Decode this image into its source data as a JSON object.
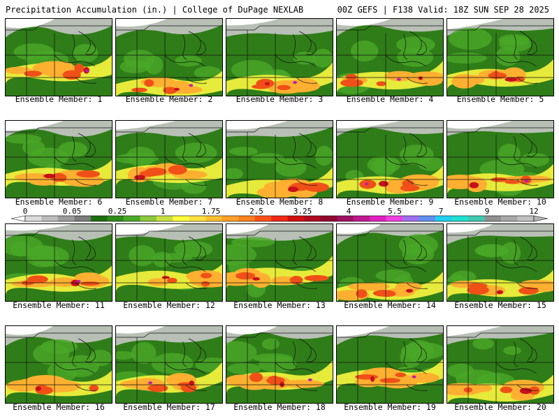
{
  "header": {
    "left": "Precipitation Accumulation (in.) | College of DuPage NEXLAB",
    "right": "00Z GEFS | F138 Valid: 18Z SUN SEP 28 2025"
  },
  "panels": [
    {
      "label": "Ensemble Member: 1"
    },
    {
      "label": "Ensemble Member: 2"
    },
    {
      "label": "Ensemble Member: 3"
    },
    {
      "label": "Ensemble Member: 4"
    },
    {
      "label": "Ensemble Member: 5"
    },
    {
      "label": "Ensemble Member: 6"
    },
    {
      "label": "Ensemble Member: 7"
    },
    {
      "label": "Ensemble Member: 8"
    },
    {
      "label": "Ensemble Member: 9"
    },
    {
      "label": "Ensemble Member: 10"
    },
    {
      "label": "Ensemble Member: 11"
    },
    {
      "label": "Ensemble Member: 12"
    },
    {
      "label": "Ensemble Member: 13"
    },
    {
      "label": "Ensemble Member: 14"
    },
    {
      "label": "Ensemble Member: 15"
    },
    {
      "label": "Ensemble Member: 16"
    },
    {
      "label": "Ensemble Member: 17"
    },
    {
      "label": "Ensemble Member: 18"
    },
    {
      "label": "Ensemble Member: 19"
    },
    {
      "label": "Ensemble Member: 20"
    }
  ],
  "colorbar": {
    "ticks": [
      "0",
      "0.05",
      "0.25",
      "1",
      "1.75",
      "2.5",
      "3.25",
      "4",
      "5.5",
      "7",
      "9",
      "12"
    ],
    "colors": [
      "#dcdcdc",
      "#bcbcbc",
      "#9c9c9c",
      "#7c7c7c",
      "#1e6e10",
      "#2e8c1a",
      "#4aa828",
      "#8cc83c",
      "#c8e040",
      "#ffff3c",
      "#ffe040",
      "#ffc030",
      "#ffa028",
      "#ff8020",
      "#ff5018",
      "#ee2814",
      "#d01010",
      "#b00a20",
      "#900830",
      "#a01060",
      "#c01890",
      "#e020c0",
      "#f040e0",
      "#a070f0",
      "#6090f0",
      "#20d0f0",
      "#20e0d0",
      "#40c8b0",
      "#909090",
      "#a8a8a8",
      "#c0c0c0"
    ]
  },
  "palette": {
    "gray_light": "#c8c8c8",
    "gray_dark": "#8c8c8c",
    "green_dark": "#2f7d18",
    "green": "#4aa828",
    "yellow": "#f0f03c",
    "orange": "#ffb030",
    "red": "#f05018",
    "crimson": "#c8101c",
    "magenta": "#c020a8",
    "border": "#111111"
  }
}
